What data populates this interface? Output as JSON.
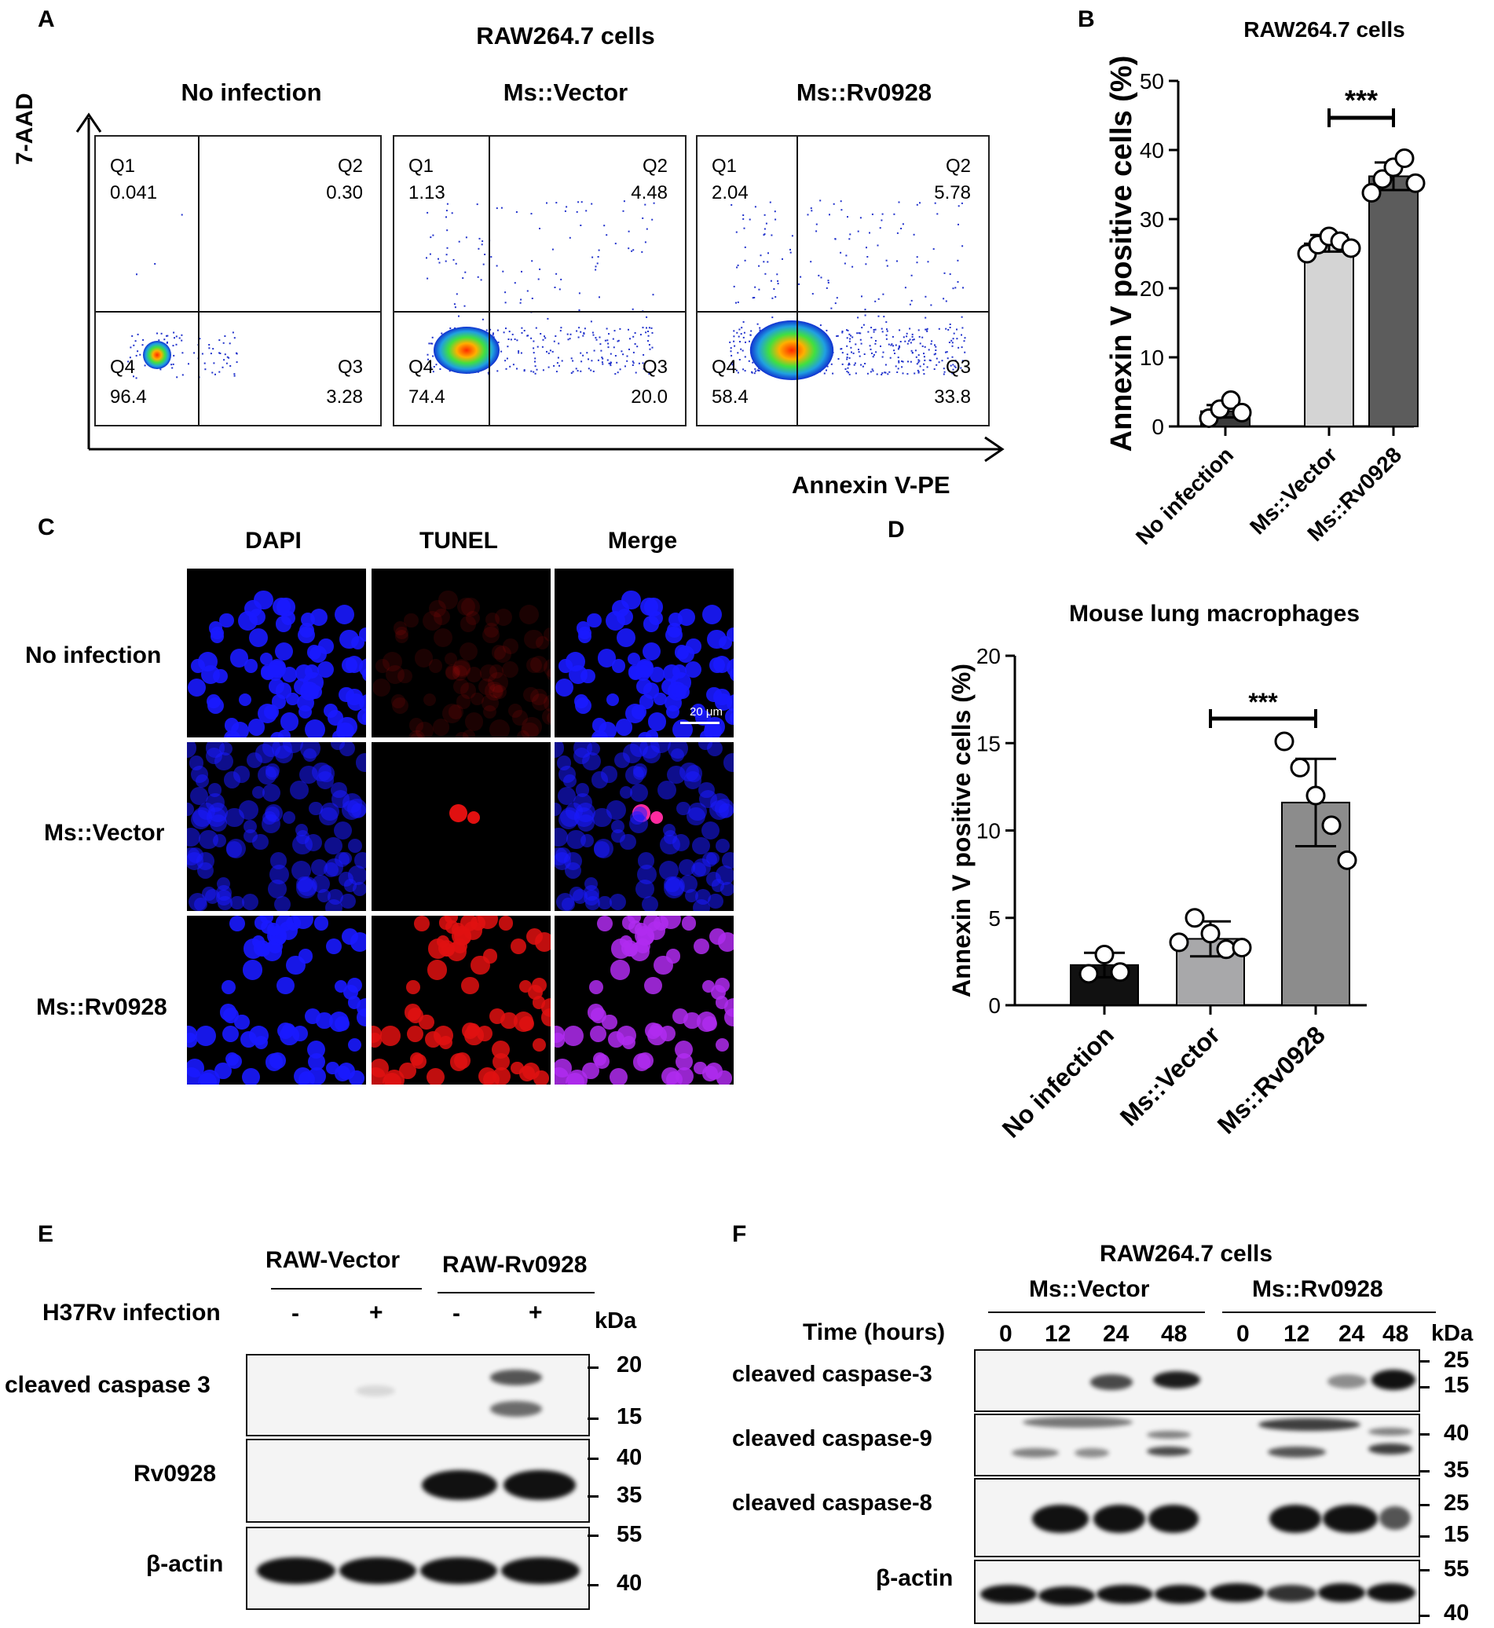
{
  "panels": {
    "A": {
      "letter": "A",
      "title": "RAW264.7 cells",
      "y_axis_label": "7-AAD",
      "x_axis_label": "Annexin V-PE",
      "plots": [
        {
          "title": "No infection",
          "q1_label": "Q1",
          "q1": "0.041",
          "q2_label": "Q2",
          "q2": "0.30",
          "q3_label": "Q3",
          "q3": "3.28",
          "q4_label": "Q4",
          "q4": "96.4"
        },
        {
          "title": "Ms::Vector",
          "q1_label": "Q1",
          "q1": "1.13",
          "q2_label": "Q2",
          "q2": "4.48",
          "q3_label": "Q3",
          "q3": "20.0",
          "q4_label": "Q4",
          "q4": "74.4"
        },
        {
          "title": "Ms::Rv0928",
          "q1_label": "Q1",
          "q1": "2.04",
          "q2_label": "Q2",
          "q2": "5.78",
          "q3_label": "Q3",
          "q3": "33.8",
          "q4_label": "Q4",
          "q4": "58.4"
        }
      ]
    },
    "B": {
      "letter": "B"
    },
    "C": {
      "letter": "C",
      "columns": [
        "DAPI",
        "TUNEL",
        "Merge"
      ],
      "rows": [
        "No infection",
        "Ms::Vector",
        "Ms::Rv0928"
      ],
      "scale_bar": "20 μm",
      "colors": {
        "dapi": "#1a1aff",
        "tunel": "#e01010",
        "merge": "#b02cf0"
      }
    },
    "D": {
      "letter": "D"
    },
    "E": {
      "letter": "E",
      "groups": [
        "RAW-Vector",
        "RAW-Rv0928"
      ],
      "infection_label": "H37Rv infection",
      "infection_states": [
        "-",
        "+",
        "-",
        "+"
      ],
      "kda": "kDa",
      "blots": [
        {
          "label": "cleaved caspase 3",
          "markers": [
            "20",
            "15"
          ]
        },
        {
          "label": "Rv0928",
          "markers": [
            "40",
            "35"
          ]
        },
        {
          "label": "β-actin",
          "markers": [
            "55",
            "40"
          ]
        }
      ]
    },
    "F": {
      "letter": "F",
      "title": "RAW264.7 cells",
      "groups": [
        "Ms::Vector",
        "Ms::Rv0928"
      ],
      "time_label": "Time (hours)",
      "times": [
        "0",
        "12",
        "24",
        "48",
        "0",
        "12",
        "24",
        "48"
      ],
      "kda": "kDa",
      "blots": [
        {
          "label": "cleaved caspase-3",
          "markers": [
            "25",
            "15"
          ]
        },
        {
          "label": "cleaved caspase-9",
          "markers": [
            "40",
            "35"
          ]
        },
        {
          "label": "cleaved caspase-8",
          "markers": [
            "25",
            "15"
          ]
        },
        {
          "label": "β-actin",
          "markers": [
            "55",
            "40"
          ]
        }
      ]
    }
  },
  "chart_data": [
    {
      "id": "B",
      "type": "bar",
      "title": "RAW264.7 cells",
      "ylabel": "Annexin V positive cells (%)",
      "xlabel": "",
      "categories": [
        "No infection",
        "Ms::Vector",
        "Ms::Rv0928"
      ],
      "values": [
        2.2,
        26.5,
        36.2
      ],
      "errors": [
        0.9,
        1.2,
        2.0
      ],
      "bar_colors": [
        "#3a3a3a",
        "#d4d4d4",
        "#5c5c5c"
      ],
      "points": [
        [
          1.2,
          2.5,
          3.8,
          2.0
        ],
        [
          25.0,
          26.3,
          27.5,
          26.8,
          25.8
        ],
        [
          33.8,
          35.8,
          37.5,
          38.8,
          35.2
        ]
      ],
      "ylim": [
        0,
        50
      ],
      "yticks": [
        0,
        10,
        20,
        30,
        40,
        50
      ],
      "significance": {
        "from": 1,
        "to": 2,
        "label": "***"
      }
    },
    {
      "id": "D",
      "type": "bar",
      "title": "Mouse lung macrophages",
      "ylabel": "Annexin V positive cells (%)",
      "xlabel": "",
      "categories": [
        "No infection",
        "Ms::Vector",
        "Ms::Rv0928"
      ],
      "values": [
        2.3,
        3.8,
        11.6
      ],
      "errors": [
        0.7,
        1.0,
        2.5
      ],
      "bar_colors": [
        "#111111",
        "#a8a8aa",
        "#8c8c8c"
      ],
      "points": [
        [
          1.8,
          2.9,
          1.9
        ],
        [
          3.6,
          5.0,
          4.1,
          3.2,
          3.3
        ],
        [
          15.1,
          13.6,
          12.0,
          10.3,
          8.3
        ]
      ],
      "ylim": [
        0,
        20
      ],
      "yticks": [
        0,
        5,
        10,
        15,
        20
      ],
      "significance": {
        "from": 1,
        "to": 2,
        "label": "***"
      }
    }
  ]
}
